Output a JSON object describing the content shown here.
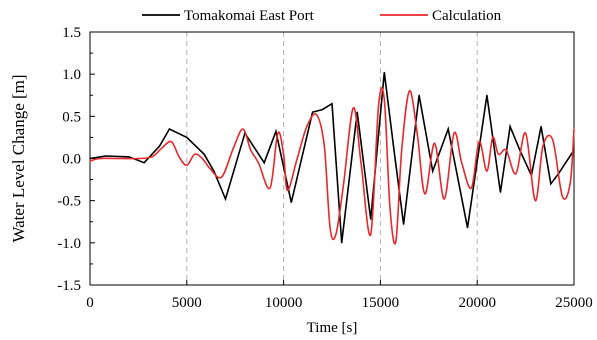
{
  "chart_data": {
    "type": "line",
    "title": "",
    "xlabel": "Time [s]",
    "ylabel": "Water Level Change [m]",
    "xlim": [
      0,
      25000
    ],
    "ylim": [
      -1.5,
      1.5
    ],
    "x_ticks": [
      0,
      5000,
      10000,
      15000,
      20000,
      25000
    ],
    "x_tick_labels": [
      "0",
      "5000",
      "10000",
      "15000",
      "20000",
      "25000"
    ],
    "y_ticks": [
      1.5,
      1.0,
      0.5,
      0.0,
      -0.5,
      -1.0,
      -1.5
    ],
    "y_tick_labels": [
      "1.5",
      "1.0",
      "0.5",
      "0.0",
      "-0.5",
      "-1.0",
      "-1.5"
    ],
    "grid": "vertical dashed",
    "legend_position": "top",
    "series": [
      {
        "name": "Tomakomai East Port",
        "color": "#000000",
        "x": [
          0,
          800,
          2000,
          2800,
          3600,
          4100,
          5000,
          5900,
          6400,
          7000,
          8000,
          9000,
          9600,
          10400,
          11500,
          12000,
          12500,
          13000,
          13800,
          14500,
          15200,
          15700,
          16200,
          17000,
          17700,
          18500,
          19500,
          20500,
          21200,
          21700,
          22200,
          22800,
          23300,
          23800,
          24200,
          25000
        ],
        "y": [
          0.0,
          0.03,
          0.02,
          -0.05,
          0.15,
          0.35,
          0.25,
          0.05,
          -0.15,
          -0.48,
          0.3,
          -0.05,
          0.32,
          -0.52,
          0.55,
          0.58,
          0.65,
          -1.0,
          0.55,
          -0.72,
          1.02,
          0.1,
          -0.78,
          0.75,
          -0.15,
          0.35,
          -0.82,
          0.75,
          -0.4,
          0.38,
          0.1,
          -0.2,
          0.38,
          -0.3,
          -0.18,
          0.1
        ]
      },
      {
        "name": "Calculation",
        "color": "#e8282a",
        "x": [
          0,
          500,
          1500,
          2500,
          3200,
          3700,
          4200,
          4600,
          5000,
          5400,
          5800,
          6200,
          6800,
          7400,
          7900,
          8300,
          8700,
          9300,
          9700,
          10000,
          10200,
          10700,
          11200,
          11700,
          12100,
          12400,
          12700,
          13100,
          13600,
          14000,
          14500,
          14900,
          15200,
          15500,
          15800,
          16100,
          16500,
          16900,
          17300,
          17800,
          18300,
          18800,
          19200,
          19700,
          20100,
          20500,
          20800,
          21100,
          21500,
          22000,
          22500,
          23000,
          23400,
          23900,
          24400,
          24800,
          25000
        ],
        "y": [
          -0.03,
          0.0,
          0.0,
          0.0,
          0.02,
          0.12,
          0.2,
          0.02,
          -0.08,
          0.05,
          0.0,
          -0.12,
          -0.22,
          0.12,
          0.35,
          0.1,
          -0.05,
          -0.35,
          0.3,
          0.05,
          -0.38,
          0.0,
          0.38,
          0.52,
          0.15,
          -0.82,
          -0.9,
          -0.3,
          0.6,
          -0.05,
          -0.9,
          0.62,
          0.7,
          -0.6,
          -0.98,
          0.1,
          0.8,
          0.3,
          -0.42,
          0.18,
          -0.48,
          0.3,
          -0.05,
          -0.35,
          0.2,
          -0.15,
          0.25,
          0.05,
          0.1,
          -0.18,
          0.3,
          -0.5,
          0.15,
          0.22,
          -0.45,
          -0.3,
          0.35
        ]
      }
    ]
  }
}
